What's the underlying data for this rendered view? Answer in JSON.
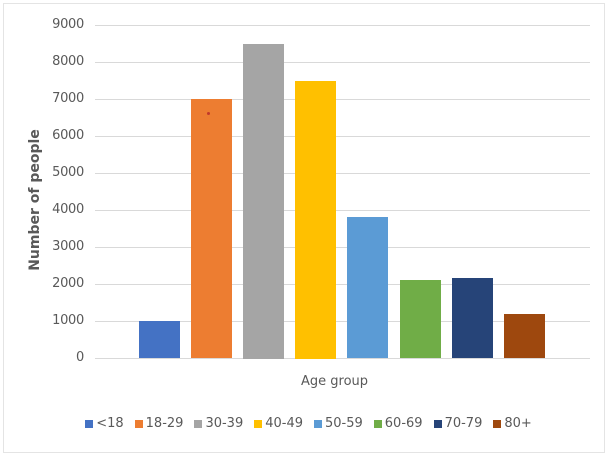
{
  "chart_data": {
    "type": "bar",
    "title": "",
    "xlabel": "Age group",
    "ylabel": "Number of people",
    "categories": [
      "<18",
      "18-29",
      "30-39",
      "40-49",
      "50-59",
      "60-69",
      "70-79",
      "80+"
    ],
    "values": [
      1000,
      7000,
      8500,
      7500,
      3800,
      2100,
      2150,
      1200
    ],
    "colors": [
      "#4472c4",
      "#ed7d31",
      "#a5a5a5",
      "#ffc000",
      "#5b9bd5",
      "#70ad47",
      "#264478",
      "#9e480e"
    ],
    "ylim": [
      0,
      9000
    ],
    "yticks": [
      0,
      1000,
      2000,
      3000,
      4000,
      5000,
      6000,
      7000,
      8000,
      9000
    ],
    "grid": true,
    "legend_position": "bottom"
  },
  "axis": {
    "y_title": "Number of people",
    "x_title": "Age group",
    "ticks": [
      "9000",
      "8000",
      "7000",
      "6000",
      "5000",
      "4000",
      "3000",
      "2000",
      "1000",
      "0"
    ]
  },
  "legend": [
    {
      "label": "<18",
      "color": "#4472c4"
    },
    {
      "label": "18-29",
      "color": "#ed7d31"
    },
    {
      "label": "30-39",
      "color": "#a5a5a5"
    },
    {
      "label": "40-49",
      "color": "#ffc000"
    },
    {
      "label": "50-59",
      "color": "#5b9bd5"
    },
    {
      "label": "60-69",
      "color": "#70ad47"
    },
    {
      "label": "70-79",
      "color": "#264478"
    },
    {
      "label": "80+",
      "color": "#9e480e"
    }
  ]
}
